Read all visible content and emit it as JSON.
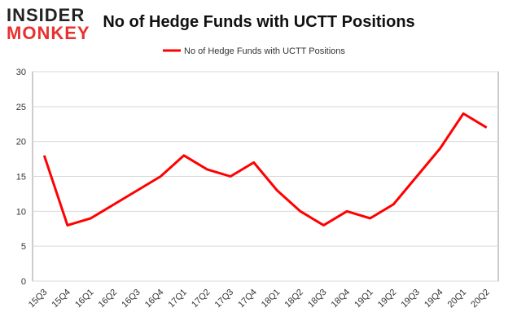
{
  "logo": {
    "top": "INSIDER",
    "bottom": "MONKEY"
  },
  "chart_data": {
    "type": "line",
    "title": "No of Hedge Funds with UCTT Positions",
    "categories": [
      "15Q3",
      "15Q4",
      "16Q1",
      "16Q2",
      "16Q3",
      "16Q4",
      "17Q1",
      "17Q2",
      "17Q3",
      "17Q4",
      "18Q1",
      "18Q2",
      "18Q3",
      "18Q4",
      "19Q1",
      "19Q2",
      "19Q3",
      "19Q4",
      "20Q1",
      "20Q2"
    ],
    "series": [
      {
        "name": "No of Hedge Funds with UCTT Positions",
        "color": "#ff0000",
        "values": [
          18,
          8,
          9,
          11,
          13,
          15,
          18,
          16,
          15,
          17,
          13,
          10,
          8,
          10,
          9,
          11,
          15,
          19,
          24,
          22
        ]
      }
    ],
    "ylim": [
      0,
      30
    ],
    "yticks": [
      0,
      5,
      10,
      15,
      20,
      25,
      30
    ],
    "grid": true,
    "legend": "top"
  }
}
